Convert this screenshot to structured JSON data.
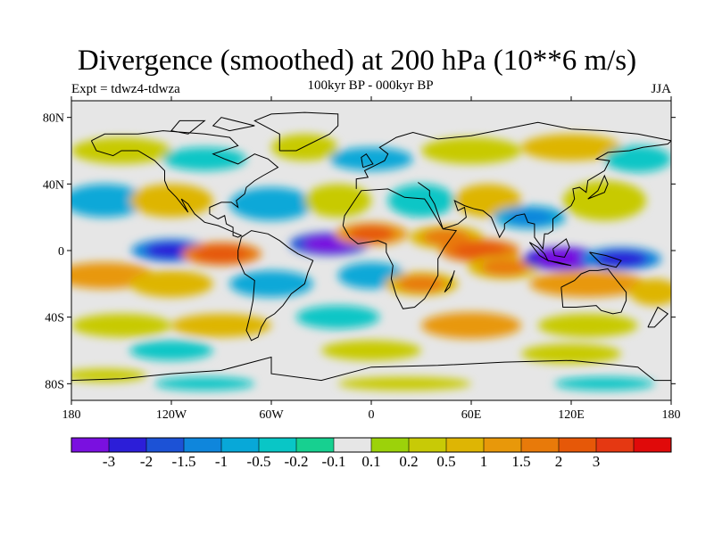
{
  "title": "Divergence (smoothed) at 200 hPa (10**6 m/s)",
  "experiment": "Expt = tdwz4-tdwza",
  "period": "100kyr BP - 000kyr BP",
  "season": "JJA",
  "axes": {
    "y_ticks": [
      {
        "label": "80N",
        "lat": 80
      },
      {
        "label": "40N",
        "lat": 40
      },
      {
        "label": "0",
        "lat": 0
      },
      {
        "label": "40S",
        "lat": -40
      },
      {
        "label": "80S",
        "lat": -80
      }
    ],
    "x_ticks": [
      {
        "label": "180",
        "lon": -180
      },
      {
        "label": "120W",
        "lon": -120
      },
      {
        "label": "60W",
        "lon": -60
      },
      {
        "label": "0",
        "lon": 0
      },
      {
        "label": "60E",
        "lon": 60
      },
      {
        "label": "120E",
        "lon": 120
      },
      {
        "label": "180",
        "lon": 180
      }
    ]
  },
  "colorbar": {
    "colors": [
      "#7a10e0",
      "#2c1ed8",
      "#1c52d6",
      "#0f86dc",
      "#08a8d8",
      "#09c6c6",
      "#17d090",
      "#e6e6e6",
      "#9cd20a",
      "#c8ca06",
      "#deb504",
      "#e8980a",
      "#e87a0a",
      "#e65808",
      "#e53812",
      "#e00a0a"
    ],
    "labels": [
      "-3",
      "-2",
      "-1.5",
      "-1",
      "-0.5",
      "-0.2",
      "-0.1",
      "0.1",
      "0.2",
      "0.5",
      "1",
      "1.5",
      "2",
      "3"
    ]
  },
  "chart_data": {
    "type": "heatmap",
    "title": "Divergence (smoothed) at 200 hPa (10**6 m/s)",
    "projection": "cylindrical equidistant",
    "xlim": [
      -180,
      180
    ],
    "ylim": [
      -90,
      90
    ],
    "contour_levels": [
      -3,
      -2,
      -1.5,
      -1,
      -0.5,
      -0.2,
      -0.1,
      0.1,
      0.2,
      0.5,
      1,
      1.5,
      2,
      3
    ],
    "features": [
      {
        "lon": -120,
        "lat": 0,
        "value": -2.5
      },
      {
        "lon": -90,
        "lat": -2,
        "value": 2.5
      },
      {
        "lon": -25,
        "lat": 4,
        "value": -3.2
      },
      {
        "lon": 0,
        "lat": 10,
        "value": 2.0
      },
      {
        "lon": 45,
        "lat": 8,
        "value": 1.5
      },
      {
        "lon": 65,
        "lat": 0,
        "value": 2.5
      },
      {
        "lon": 80,
        "lat": -10,
        "value": 1.5
      },
      {
        "lon": 115,
        "lat": -5,
        "value": -3.5
      },
      {
        "lon": 150,
        "lat": -5,
        "value": -2.5
      },
      {
        "lon": 30,
        "lat": -20,
        "value": 1.5
      },
      {
        "lon": 95,
        "lat": 20,
        "value": -1.5
      }
    ]
  }
}
